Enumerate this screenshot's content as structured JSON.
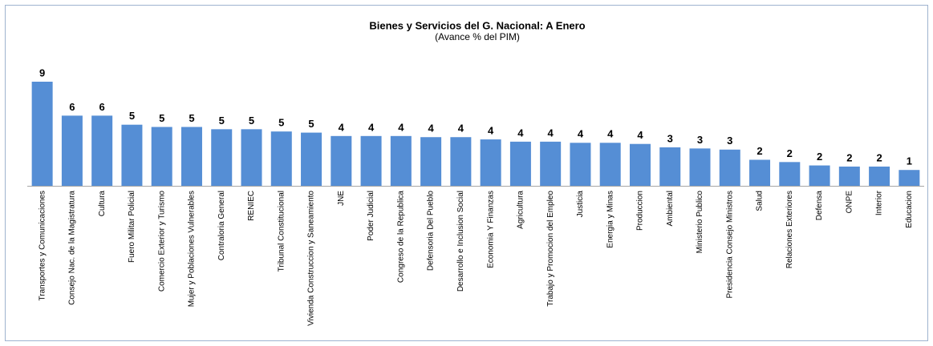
{
  "chart_data": {
    "type": "bar",
    "title": "Bienes y Servicios del G. Nacional:  A Enero",
    "subtitle": "(Avance % del PIM)",
    "color": "#558ed5",
    "categories": [
      "Transportes y Comunicaciones",
      "Consejo Nac. de la Magistratura",
      "Cultura",
      "Fuero Militar Policial",
      "Comercio Exterior y Turismo",
      "Mujer y Poblaciones Vulnerables",
      "Contraloria General",
      "RENIEC",
      "Tribunal Constitucional",
      "Vivienda Construccion y Saneamiento",
      "JNE",
      "Poder Judicial",
      "Congreso de la Republica",
      "Defensoria Del Pueblo",
      "Desarrollo e Inclusion Social",
      "Economia Y Finanzas",
      "Agricultura",
      "Trabajo y Promocion del Empleo",
      "Justicia",
      "Energia y Minas",
      "Produccion",
      "Ambiental",
      "Ministerio Publico",
      "Presidencia Consejo Ministros",
      "Salud",
      "Relaciones Exteriores",
      "Defensa",
      "ONPE",
      "Interior",
      "Educacion"
    ],
    "values": [
      9.2,
      6.2,
      6.2,
      5.4,
      5.2,
      5.2,
      5.0,
      5.0,
      4.8,
      4.7,
      4.4,
      4.4,
      4.4,
      4.3,
      4.3,
      4.1,
      3.9,
      3.9,
      3.8,
      3.8,
      3.7,
      3.4,
      3.3,
      3.2,
      2.3,
      2.1,
      1.8,
      1.7,
      1.7,
      1.4
    ],
    "value_labels": [
      "9",
      "6",
      "6",
      "5",
      "5",
      "5",
      "5",
      "5",
      "5",
      "5",
      "4",
      "4",
      "4",
      "4",
      "4",
      "4",
      "4",
      "4",
      "4",
      "4",
      "4",
      "3",
      "3",
      "3",
      "2",
      "2",
      "2",
      "2",
      "2",
      "1"
    ]
  }
}
